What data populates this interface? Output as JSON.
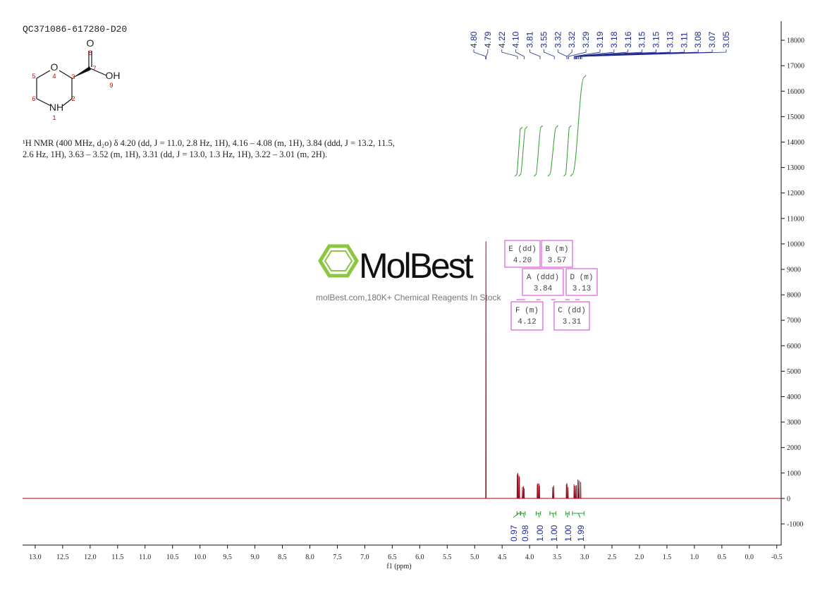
{
  "chart_data": {
    "type": "line",
    "title": "QC371086-617280-D20",
    "description": [
      "¹H NMR (400 MHz, d₂o) δ 4.20 (dd, J = 11.0, 2.8 Hz, 1H), 4.16 – 4.08 (m, 1H), 3.84 (ddd, J = 13.2, 11.5,",
      "2.6 Hz, 1H), 3.63 – 3.52 (m, 1H), 3.31 (dd, J = 13.0, 1.3 Hz, 1H), 3.22 – 3.01 (m, 2H)."
    ],
    "xlabel": "f1 (ppm)",
    "color": "#9b0a1e",
    "x": [
      13.23,
      4.799,
      4.795,
      4.791,
      4.229,
      4.225,
      4.221,
      4.219,
      4.215,
      4.211,
      4.199,
      4.195,
      4.191,
      4.189,
      4.185,
      4.181,
      4.134,
      4.13,
      4.126,
      4.114,
      4.11,
      4.106,
      4.104,
      4.1,
      4.096,
      3.864,
      3.86,
      3.856,
      3.854,
      3.85,
      3.846,
      3.834,
      3.83,
      3.826,
      3.824,
      3.82,
      3.816,
      3.584,
      3.58,
      3.576,
      3.564,
      3.56,
      3.556,
      3.334,
      3.33,
      3.326,
      3.324,
      3.32,
      3.316,
      3.304,
      3.3,
      3.296,
      3.194,
      3.19,
      3.186,
      3.174,
      3.17,
      3.166,
      3.154,
      3.15,
      3.146,
      3.124,
      3.12,
      3.116,
      3.104,
      3.1,
      3.096,
      3.074,
      3.07,
      3.066,
      -0.58
    ],
    "values": [
      0,
      0,
      10100,
      0,
      0,
      950,
      0,
      0,
      1000,
      0,
      0,
      900,
      0,
      0,
      850,
      0,
      0,
      450,
      0,
      0,
      480,
      0,
      0,
      400,
      0,
      0,
      550,
      0,
      0,
      600,
      0,
      0,
      580,
      0,
      0,
      500,
      0,
      0,
      450,
      0,
      0,
      500,
      0,
      0,
      550,
      0,
      0,
      600,
      0,
      0,
      450,
      0,
      0,
      550,
      0,
      0,
      500,
      0,
      0,
      520,
      0,
      0,
      750,
      0,
      0,
      700,
      0,
      0,
      650,
      0,
      0
    ],
    "xlim": [
      13.23,
      -0.58
    ],
    "ylim": [
      -1830,
      18750
    ],
    "xticks": [
      {
        "value": 13,
        "label": "13.0"
      },
      12.5,
      {
        "value": 12,
        "label": "12.0"
      },
      11.5,
      {
        "value": 11,
        "label": "11.0"
      },
      10.5,
      {
        "value": 10,
        "label": "10.0"
      },
      9.5,
      {
        "value": 9,
        "label": "9.0"
      },
      8.5,
      {
        "value": 8,
        "label": "8.0"
      },
      7.5,
      {
        "value": 7,
        "label": "7.0"
      },
      6.5,
      {
        "value": 6,
        "label": "6.0"
      },
      5.5,
      {
        "value": 5,
        "label": "5.0"
      },
      4.5,
      {
        "value": 4,
        "label": "4.0"
      },
      3.5,
      {
        "value": 3,
        "label": "3.0"
      },
      2.5,
      {
        "value": 2,
        "label": "2.0"
      },
      1.5,
      {
        "value": 1,
        "label": "1.0"
      },
      0.5,
      {
        "value": 0,
        "label": "0.0"
      },
      -0.5
    ],
    "yticks": [
      18000,
      17000,
      16000,
      15000,
      14000,
      13000,
      12000,
      11000,
      10000,
      9000,
      8000,
      7000,
      6000,
      5000,
      4000,
      3000,
      2000,
      1000,
      0,
      -1000
    ],
    "peak_labels": [
      {
        "value": 4.8,
        "label": "4.80"
      },
      4.79,
      4.22,
      {
        "value": 4.1,
        "label": "4.10"
      },
      3.81,
      3.55,
      3.32,
      3.32,
      3.29,
      3.19,
      3.18,
      3.16,
      3.15,
      3.15,
      3.13,
      3.11,
      3.08,
      3.07,
      3.05
    ],
    "peak_label_color": "#1f2a8a",
    "integrals": {
      "ranges": [
        [
          4.23,
          4.17
        ],
        [
          4.16,
          4.08
        ],
        [
          3.88,
          3.8
        ],
        [
          3.63,
          3.52
        ],
        [
          3.34,
          3.28
        ],
        [
          3.22,
          3.01
        ]
      ],
      "values": [
        0.97,
        0.98,
        1,
        1,
        1,
        1.99
      ],
      "value_labels": [
        "0.97",
        "0.98",
        "1.00",
        "1.00",
        "1.00",
        "1.99"
      ],
      "color": "#2e9a2e"
    },
    "multiplets": {
      "names": [
        "E (dd)",
        "B (m)",
        "A (ddd)",
        "D (m)",
        "F (m)",
        "C (dd)"
      ],
      "values": [
        4.2,
        3.57,
        3.84,
        3.13,
        4.12,
        3.31
      ],
      "value_labels": [
        "4.20",
        "3.57",
        "3.84",
        "3.13",
        "4.12",
        "3.31"
      ],
      "color": "#d23fd2"
    },
    "structure": {
      "labels": [
        "O",
        "OH",
        "O",
        "NH"
      ],
      "numbers": [
        8,
        7,
        9,
        4,
        3,
        5,
        2,
        6,
        1
      ]
    },
    "watermark": {
      "brand": "MolBest",
      "tagline": "molBest.com,180K+ Chemical Reagents In Stock"
    }
  }
}
